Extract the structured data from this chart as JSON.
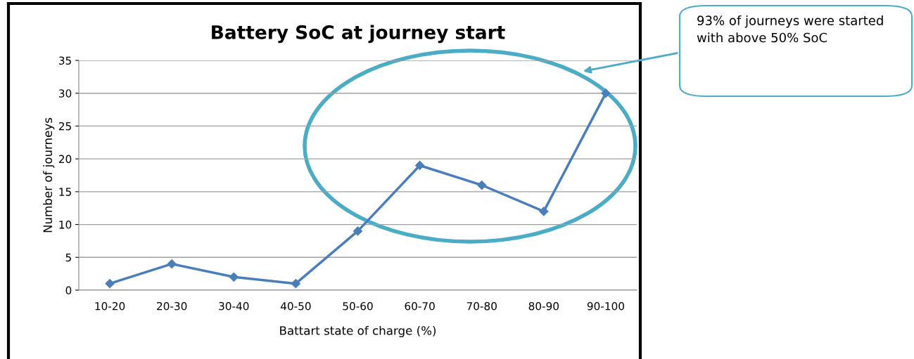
{
  "chart_data": {
    "type": "line",
    "title": "Battery SoC at journey start",
    "xlabel": "Battart state of charge (%)",
    "ylabel": "Number of journeys",
    "categories": [
      "10-20",
      "20-30",
      "30-40",
      "40-50",
      "50-60",
      "60-70",
      "70-80",
      "80-90",
      "90-100"
    ],
    "series": [
      {
        "color": "#4a7ebb",
        "values": [
          1,
          4,
          2,
          1,
          9,
          19,
          16,
          12,
          30
        ]
      }
    ],
    "ylim": [
      0,
      35
    ],
    "yticks": [
      0,
      5,
      10,
      15,
      20,
      25,
      30,
      35
    ],
    "grid": "y",
    "marker": "diamond",
    "line_style": "solid",
    "legend": false,
    "annotations": [
      "93% of journeys were started with above 50% SoC"
    ]
  }
}
